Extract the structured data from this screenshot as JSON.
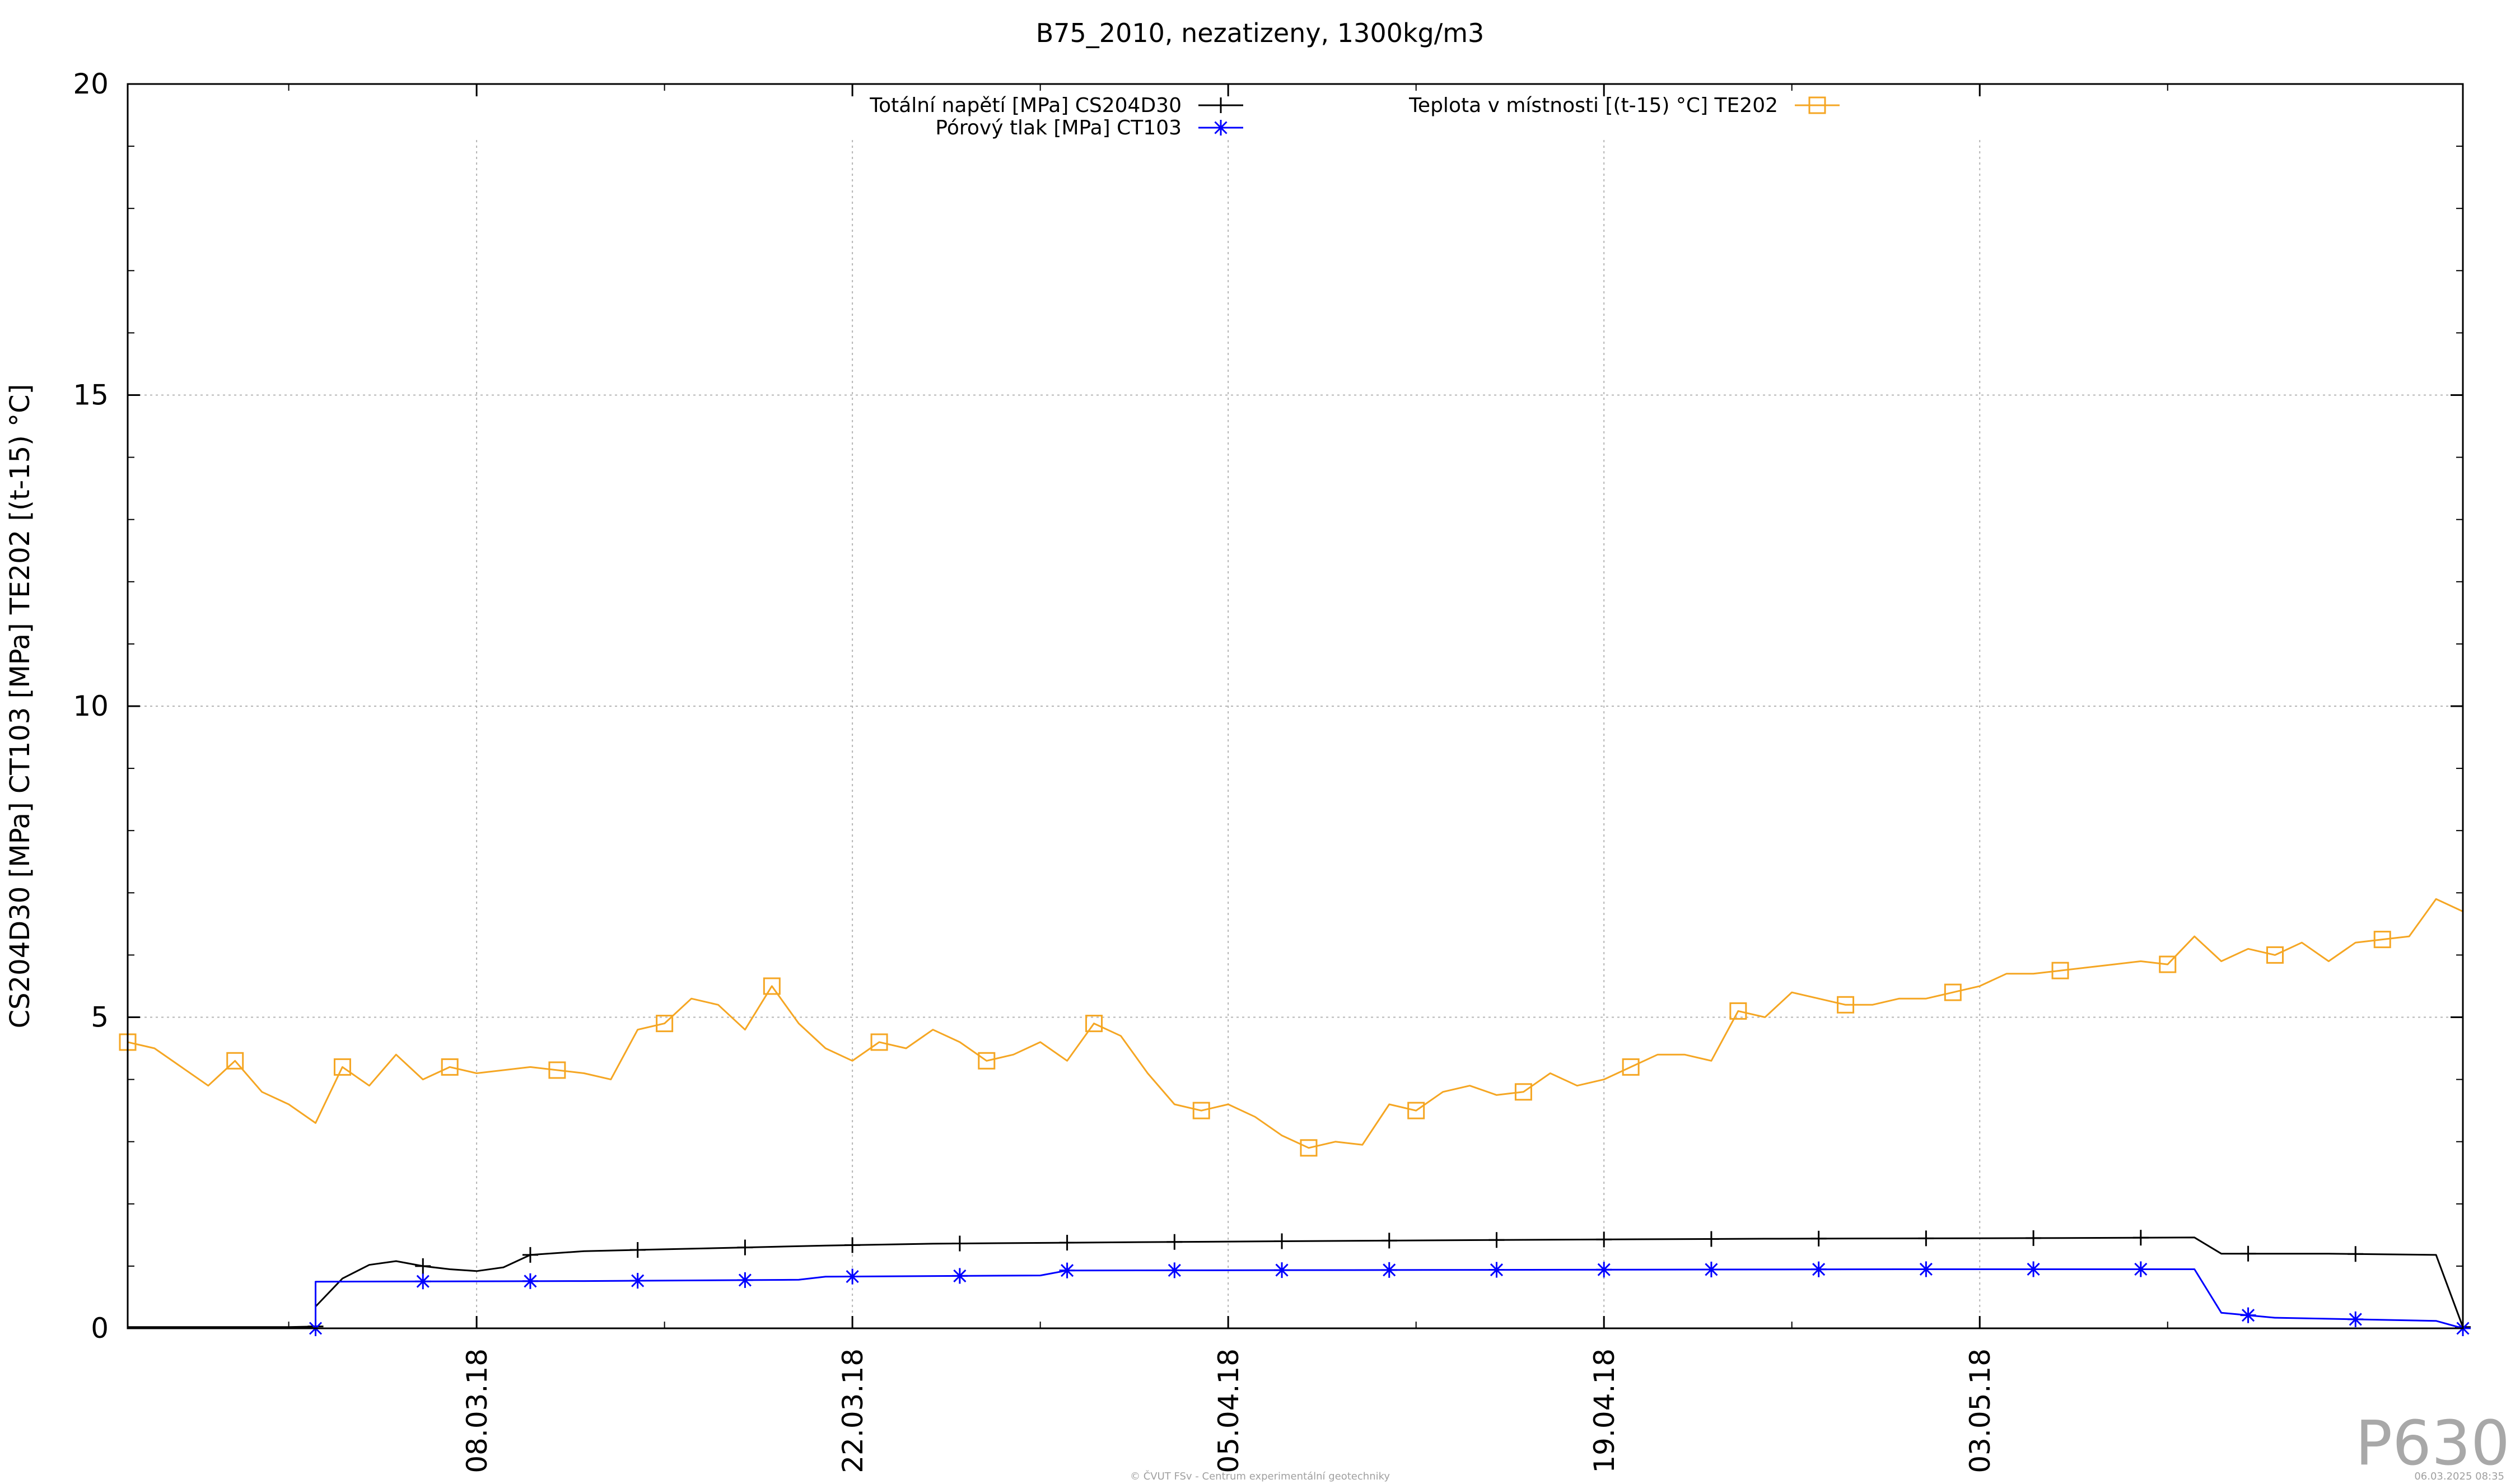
{
  "chart_data": {
    "type": "line",
    "title": "B75_2010, nezatizeny, 1300kg/m3",
    "ylabel": "CS204D30 [MPa] CT103 [MPa] TE202 [(t-15) °C]",
    "xlabel": "",
    "x_range": [
      "2018-02-23",
      "2018-05-21"
    ],
    "ylim": [
      0,
      20
    ],
    "y_ticks": [
      0,
      5,
      10,
      15,
      20
    ],
    "x_ticks": [
      "08.03.18",
      "22.03.18",
      "05.04.18",
      "19.04.18",
      "03.05.18"
    ],
    "x_tick_dates": [
      "2018-03-08",
      "2018-03-22",
      "2018-04-05",
      "2018-04-19",
      "2018-05-03"
    ],
    "grid": true,
    "legend_position": "top",
    "series": [
      {
        "name": "Totální napětí [MPa] CS204D30",
        "color": "#000000",
        "marker": "plus",
        "points": [
          [
            "2018-02-23",
            0.02
          ],
          [
            "2018-03-01",
            0.02
          ],
          [
            "2018-03-02",
            0.03
          ],
          [
            "2018-03-02",
            0.35
          ],
          [
            "2018-03-03",
            0.8
          ],
          [
            "2018-03-04",
            1.02
          ],
          [
            "2018-03-05",
            1.08
          ],
          [
            "2018-03-06",
            1.0
          ],
          [
            "2018-03-07",
            0.95
          ],
          [
            "2018-03-08",
            0.92
          ],
          [
            "2018-03-09",
            0.98
          ],
          [
            "2018-03-10",
            1.18
          ],
          [
            "2018-03-12",
            1.24
          ],
          [
            "2018-03-15",
            1.27
          ],
          [
            "2018-03-18",
            1.3
          ],
          [
            "2018-03-21",
            1.33
          ],
          [
            "2018-03-25",
            1.36
          ],
          [
            "2018-03-31",
            1.38
          ],
          [
            "2018-04-07",
            1.4
          ],
          [
            "2018-04-15",
            1.42
          ],
          [
            "2018-04-25",
            1.44
          ],
          [
            "2018-05-05",
            1.45
          ],
          [
            "2018-05-11",
            1.46
          ],
          [
            "2018-05-12",
            1.2
          ],
          [
            "2018-05-16",
            1.2
          ],
          [
            "2018-05-20",
            1.18
          ],
          [
            "2018-05-21",
            0.02
          ]
        ]
      },
      {
        "name": "Pórový tlak [MPa] CT103",
        "color": "#0000ff",
        "marker": "star",
        "points": [
          [
            "2018-02-23",
            0.0
          ],
          [
            "2018-03-02",
            0.0
          ],
          [
            "2018-03-02",
            0.75
          ],
          [
            "2018-03-12",
            0.76
          ],
          [
            "2018-03-20",
            0.78
          ],
          [
            "2018-03-21",
            0.83
          ],
          [
            "2018-03-29",
            0.85
          ],
          [
            "2018-03-30",
            0.93
          ],
          [
            "2018-04-30",
            0.95
          ],
          [
            "2018-05-11",
            0.95
          ],
          [
            "2018-05-12",
            0.25
          ],
          [
            "2018-05-14",
            0.17
          ],
          [
            "2018-05-20",
            0.12
          ],
          [
            "2018-05-21",
            0.0
          ]
        ]
      },
      {
        "name": "Teplota v místnosti [(t-15) °C] TE202",
        "color": "#f5a623",
        "marker": "square",
        "points": [
          [
            "2018-02-23",
            4.6
          ],
          [
            "2018-02-24",
            4.5
          ],
          [
            "2018-02-25",
            4.2
          ],
          [
            "2018-02-26",
            3.9
          ],
          [
            "2018-02-27",
            4.3
          ],
          [
            "2018-02-28",
            3.8
          ],
          [
            "2018-03-01",
            3.6
          ],
          [
            "2018-03-02",
            3.3
          ],
          [
            "2018-03-03",
            4.2
          ],
          [
            "2018-03-04",
            3.9
          ],
          [
            "2018-03-05",
            4.4
          ],
          [
            "2018-03-06",
            4.0
          ],
          [
            "2018-03-07",
            4.2
          ],
          [
            "2018-03-08",
            4.1
          ],
          [
            "2018-03-10",
            4.2
          ],
          [
            "2018-03-12",
            4.1
          ],
          [
            "2018-03-13",
            4.0
          ],
          [
            "2018-03-14",
            4.8
          ],
          [
            "2018-03-15",
            4.9
          ],
          [
            "2018-03-16",
            5.3
          ],
          [
            "2018-03-17",
            5.2
          ],
          [
            "2018-03-18",
            4.8
          ],
          [
            "2018-03-19",
            5.5
          ],
          [
            "2018-03-20",
            4.9
          ],
          [
            "2018-03-21",
            4.5
          ],
          [
            "2018-03-22",
            4.3
          ],
          [
            "2018-03-23",
            4.6
          ],
          [
            "2018-03-24",
            4.5
          ],
          [
            "2018-03-25",
            4.8
          ],
          [
            "2018-03-26",
            4.6
          ],
          [
            "2018-03-27",
            4.3
          ],
          [
            "2018-03-28",
            4.4
          ],
          [
            "2018-03-29",
            4.6
          ],
          [
            "2018-03-30",
            4.3
          ],
          [
            "2018-03-31",
            4.9
          ],
          [
            "2018-04-01",
            4.7
          ],
          [
            "2018-04-02",
            4.1
          ],
          [
            "2018-04-03",
            3.6
          ],
          [
            "2018-04-04",
            3.5
          ],
          [
            "2018-04-05",
            3.6
          ],
          [
            "2018-04-06",
            3.4
          ],
          [
            "2018-04-07",
            3.1
          ],
          [
            "2018-04-08",
            2.9
          ],
          [
            "2018-04-09",
            3.0
          ],
          [
            "2018-04-10",
            2.95
          ],
          [
            "2018-04-11",
            3.6
          ],
          [
            "2018-04-12",
            3.5
          ],
          [
            "2018-04-13",
            3.8
          ],
          [
            "2018-04-14",
            3.9
          ],
          [
            "2018-04-15",
            3.75
          ],
          [
            "2018-04-16",
            3.8
          ],
          [
            "2018-04-17",
            4.1
          ],
          [
            "2018-04-18",
            3.9
          ],
          [
            "2018-04-19",
            4.0
          ],
          [
            "2018-04-20",
            4.2
          ],
          [
            "2018-04-21",
            4.4
          ],
          [
            "2018-04-22",
            4.4
          ],
          [
            "2018-04-23",
            4.3
          ],
          [
            "2018-04-24",
            5.1
          ],
          [
            "2018-04-25",
            5.0
          ],
          [
            "2018-04-26",
            5.4
          ],
          [
            "2018-04-27",
            5.3
          ],
          [
            "2018-04-28",
            5.2
          ],
          [
            "2018-04-29",
            5.2
          ],
          [
            "2018-04-30",
            5.3
          ],
          [
            "2018-05-01",
            5.3
          ],
          [
            "2018-05-02",
            5.4
          ],
          [
            "2018-05-03",
            5.5
          ],
          [
            "2018-05-04",
            5.7
          ],
          [
            "2018-05-05",
            5.7
          ],
          [
            "2018-05-06",
            5.75
          ],
          [
            "2018-05-07",
            5.8
          ],
          [
            "2018-05-08",
            5.85
          ],
          [
            "2018-05-09",
            5.9
          ],
          [
            "2018-05-10",
            5.85
          ],
          [
            "2018-05-11",
            6.3
          ],
          [
            "2018-05-12",
            5.9
          ],
          [
            "2018-05-13",
            6.1
          ],
          [
            "2018-05-14",
            6.0
          ],
          [
            "2018-05-15",
            6.2
          ],
          [
            "2018-05-16",
            5.9
          ],
          [
            "2018-05-17",
            6.2
          ],
          [
            "2018-05-18",
            6.25
          ],
          [
            "2018-05-19",
            6.3
          ],
          [
            "2018-05-20",
            6.9
          ],
          [
            "2018-05-21",
            6.7
          ]
        ]
      }
    ]
  },
  "watermark": "P630",
  "footer_center": "© ČVUT FSv - Centrum experimentální geotechniky",
  "footer_right": "06.03.2025 08:35"
}
